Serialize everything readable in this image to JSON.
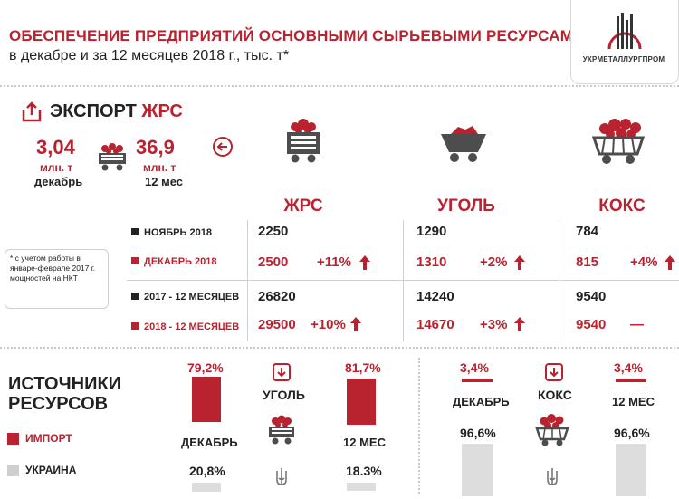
{
  "header": {
    "title_line1": "ОБЕСПЕЧЕНИЕ ПРЕДПРИЯТИЙ ОСНОВНЫМИ СЫРЬЕВЫМИ РЕСУРСАМИ",
    "title_line2": "в декабре и за 12 месяцев 2018 г.,  тыс. т*",
    "logo_text": "УКРМЕТАЛЛУРГПРОМ"
  },
  "export": {
    "title_prefix": "ЭКСПОРТ ",
    "title_accent": "ЖРС",
    "dec_value": "3,04",
    "dec_unit": "млн. т",
    "dec_label": "декабрь",
    "year_value": "36,9",
    "year_unit": "млн. т",
    "year_label": "12 мес"
  },
  "table": {
    "columns": [
      "ЖРС",
      "УГОЛЬ",
      "КОКС"
    ],
    "rows": [
      {
        "label": "НОЯБРЬ 2018",
        "values": [
          "2250",
          "1290",
          "784"
        ],
        "changes": [
          "",
          "",
          ""
        ]
      },
      {
        "label": "ДЕКАБРЬ 2018",
        "values": [
          "2500",
          "1310",
          "815"
        ],
        "changes": [
          "+11%",
          "+2%",
          "+4%"
        ]
      },
      {
        "label": "2017 - 12 МЕСЯЦЕВ",
        "values": [
          "26820",
          "14240",
          "9540"
        ],
        "changes": [
          "",
          "",
          ""
        ]
      },
      {
        "label": "2018 - 12 МЕСЯЦЕВ",
        "values": [
          "29500",
          "14670",
          "9540"
        ],
        "changes": [
          "+10%",
          "+3%",
          "—"
        ]
      }
    ]
  },
  "note": "* с учетом работы в январе-феврале 2017 г. мощностей на НКТ",
  "sources": {
    "title_line1": "ИСТОЧНИКИ",
    "title_line2": "РЕСУРСОВ",
    "legend_import": "ИМПОРТ",
    "legend_ukraine": "УКРАИНА",
    "coal": {
      "label": "УГОЛЬ",
      "december": {
        "label": "ДЕКАБРЬ",
        "import_pct": 79.2,
        "import_text": "79,2%",
        "ukraine_pct": 20.8,
        "ukraine_text": "20,8%"
      },
      "year": {
        "label": "12 МЕС",
        "import_pct": 81.7,
        "import_text": "81,7%",
        "ukraine_pct": 18.3,
        "ukraine_text": "18.3%"
      }
    },
    "coke": {
      "label": "КОКС",
      "december": {
        "label": "ДЕКАБРЬ",
        "import_pct": 3.4,
        "import_text": "3,4%",
        "ukraine_pct": 96.6,
        "ukraine_text": "96,6%"
      },
      "year": {
        "label": "12 МЕС",
        "import_pct": 3.4,
        "import_text": "3,4%",
        "ukraine_pct": 96.6,
        "ukraine_text": "96,6%"
      }
    }
  },
  "colors": {
    "accent": "#b8232f",
    "dark": "#222222",
    "gray_bar": "#dddddd",
    "icon_gray": "#4d4d4d"
  }
}
